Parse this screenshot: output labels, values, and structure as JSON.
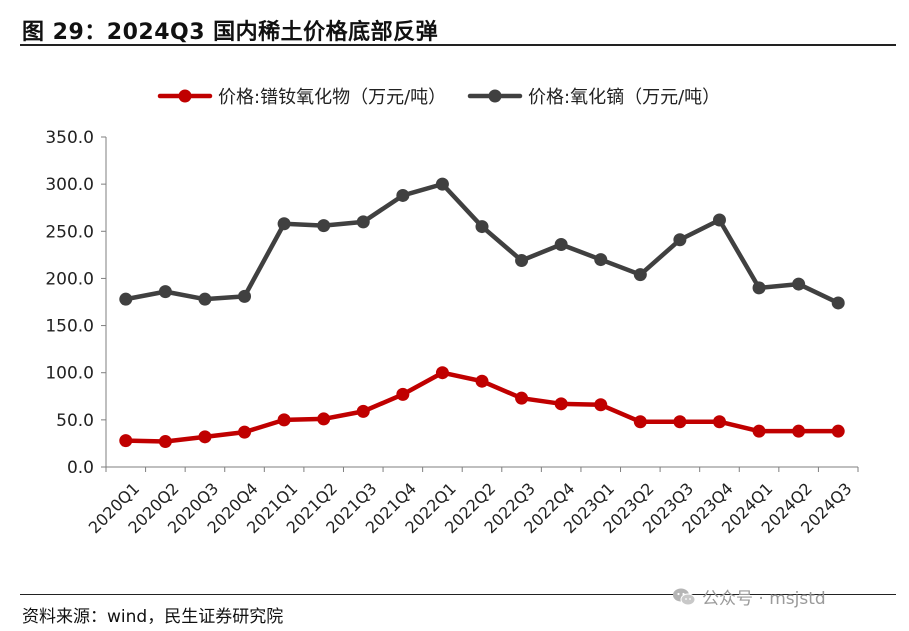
{
  "figure": {
    "title": "图 29：2024Q3 国内稀土价格底部反弹",
    "source": "资料来源：wind，民生证券研究院",
    "watermark": "公众号 · msjstd"
  },
  "chart_data": {
    "type": "line",
    "title": "",
    "xlabel": "",
    "ylabel": "",
    "ylim": [
      0,
      350
    ],
    "yticks": [
      "0.0",
      "50.0",
      "100.0",
      "150.0",
      "200.0",
      "250.0",
      "300.0",
      "350.0"
    ],
    "grid": false,
    "legend_position": "top-center",
    "categories": [
      "2020Q1",
      "2020Q2",
      "2020Q3",
      "2020Q4",
      "2021Q1",
      "2021Q2",
      "2021Q3",
      "2021Q4",
      "2022Q1",
      "2022Q2",
      "2022Q3",
      "2022Q4",
      "2023Q1",
      "2023Q2",
      "2023Q3",
      "2023Q4",
      "2024Q1",
      "2024Q2",
      "2024Q3"
    ],
    "series": [
      {
        "name": "价格:镨钕氧化物（万元/吨）",
        "color": "#C00000",
        "values": [
          28,
          27,
          32,
          37,
          50,
          51,
          59,
          77,
          100,
          91,
          73,
          67,
          66,
          48,
          48,
          48,
          38,
          38,
          38
        ]
      },
      {
        "name": "价格:氧化镝（万元/吨）",
        "color": "#404040",
        "values": [
          178,
          186,
          178,
          181,
          258,
          256,
          260,
          288,
          300,
          255,
          219,
          236,
          220,
          204,
          241,
          262,
          190,
          194,
          174
        ]
      }
    ]
  }
}
